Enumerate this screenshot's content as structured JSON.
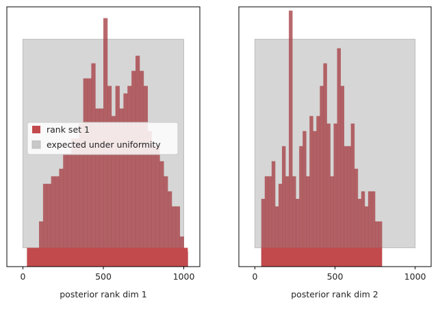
{
  "colors": {
    "hist": "#a84448",
    "uniform_band": "#c8c8c8",
    "bottom_band": "#c24a4d"
  },
  "chart_data": [
    {
      "type": "bar",
      "title": "",
      "xlabel": "posterior rank dim 1",
      "ylabel": "",
      "xlim": [
        -100,
        1100
      ],
      "ylim": [
        0,
        34.5
      ],
      "xticks": [
        0,
        500,
        1000
      ],
      "bin_edges_start": 25,
      "bin_width": 25,
      "values": [
        0,
        0,
        0,
        6,
        11,
        11,
        12,
        12,
        13,
        15,
        15,
        17,
        17,
        19,
        25,
        25,
        27,
        21,
        21,
        33,
        24,
        20,
        24,
        21,
        23,
        24,
        26,
        28,
        26,
        24,
        18,
        16,
        16,
        14,
        12,
        10,
        8,
        8,
        4,
        2,
        0
      ],
      "uniform_band": {
        "x": [
          0,
          1000
        ],
        "y": [
          2.5,
          30.2
        ]
      },
      "legend": {
        "location": "center-left",
        "entries": [
          "rank set 1",
          "expected under uniformity"
        ]
      }
    },
    {
      "type": "bar",
      "title": "",
      "xlabel": "posterior rank dim 2",
      "ylabel": "",
      "xlim": [
        -100,
        1100
      ],
      "ylim": [
        0,
        34.5
      ],
      "xticks": [
        0,
        500,
        1000
      ],
      "bin_edges_start": 40,
      "bin_width": 21.5,
      "values": [
        9,
        12,
        12,
        14,
        8,
        11,
        16,
        12,
        34,
        12,
        9,
        16,
        18,
        12,
        20,
        18,
        20,
        24,
        27,
        19,
        12,
        19,
        29,
        24,
        16,
        16,
        19,
        13,
        9,
        10,
        8,
        10,
        10,
        6,
        6
      ],
      "uniform_band": {
        "x": [
          0,
          1000
        ],
        "y": [
          2.5,
          30.2
        ]
      },
      "legend": null
    }
  ]
}
